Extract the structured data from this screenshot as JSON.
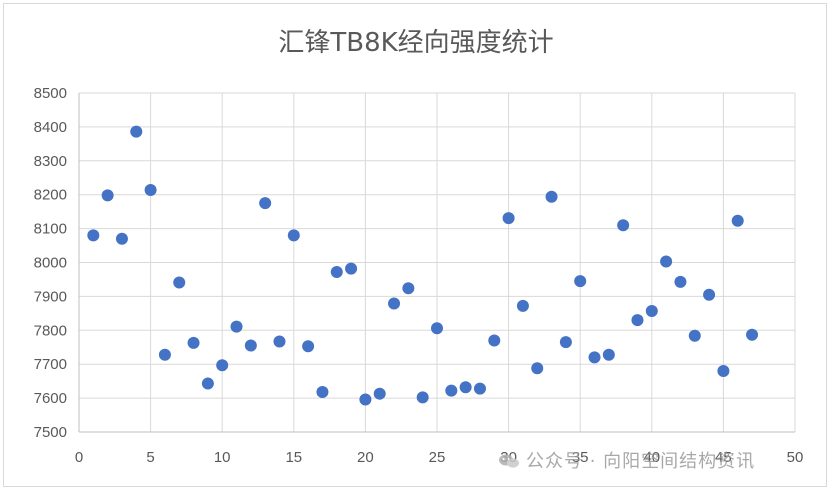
{
  "chart_data": {
    "type": "scatter",
    "title": "汇锋TB8K经向强度统计",
    "xlabel": "",
    "ylabel": "",
    "xlim": [
      0,
      50
    ],
    "ylim": [
      7500,
      8500
    ],
    "x_ticks": [
      0,
      5,
      10,
      15,
      20,
      25,
      30,
      35,
      40,
      45,
      50
    ],
    "y_ticks": [
      7500,
      7600,
      7700,
      7800,
      7900,
      8000,
      8100,
      8200,
      8300,
      8400,
      8500
    ],
    "grid": true,
    "legend": "none",
    "marker_color": "#4472c4",
    "points": [
      {
        "x": 1,
        "y": 8080
      },
      {
        "x": 2,
        "y": 8198
      },
      {
        "x": 3,
        "y": 8070
      },
      {
        "x": 4,
        "y": 8386
      },
      {
        "x": 5,
        "y": 8214
      },
      {
        "x": 6,
        "y": 7728
      },
      {
        "x": 7,
        "y": 7941
      },
      {
        "x": 8,
        "y": 7763
      },
      {
        "x": 9,
        "y": 7643
      },
      {
        "x": 10,
        "y": 7697
      },
      {
        "x": 11,
        "y": 7811
      },
      {
        "x": 12,
        "y": 7755
      },
      {
        "x": 13,
        "y": 8175
      },
      {
        "x": 14,
        "y": 7767
      },
      {
        "x": 15,
        "y": 8080
      },
      {
        "x": 16,
        "y": 7753
      },
      {
        "x": 17,
        "y": 7618
      },
      {
        "x": 18,
        "y": 7972
      },
      {
        "x": 19,
        "y": 7982
      },
      {
        "x": 20,
        "y": 7596
      },
      {
        "x": 21,
        "y": 7613
      },
      {
        "x": 22,
        "y": 7879
      },
      {
        "x": 23,
        "y": 7924
      },
      {
        "x": 24,
        "y": 7602
      },
      {
        "x": 25,
        "y": 7806
      },
      {
        "x": 26,
        "y": 7622
      },
      {
        "x": 27,
        "y": 7632
      },
      {
        "x": 28,
        "y": 7628
      },
      {
        "x": 29,
        "y": 7770
      },
      {
        "x": 30,
        "y": 8131
      },
      {
        "x": 31,
        "y": 7872
      },
      {
        "x": 32,
        "y": 7688
      },
      {
        "x": 33,
        "y": 8194
      },
      {
        "x": 34,
        "y": 7765
      },
      {
        "x": 35,
        "y": 7945
      },
      {
        "x": 36,
        "y": 7720
      },
      {
        "x": 37,
        "y": 7728
      },
      {
        "x": 38,
        "y": 8110
      },
      {
        "x": 39,
        "y": 7830
      },
      {
        "x": 40,
        "y": 7857
      },
      {
        "x": 41,
        "y": 8003
      },
      {
        "x": 42,
        "y": 7943
      },
      {
        "x": 43,
        "y": 7784
      },
      {
        "x": 44,
        "y": 7905
      },
      {
        "x": 45,
        "y": 7680
      },
      {
        "x": 46,
        "y": 8123
      },
      {
        "x": 47,
        "y": 7787
      }
    ]
  },
  "watermark": {
    "text": "公众号 · 向阳空间结构资讯",
    "icon": "wechat-icon"
  }
}
